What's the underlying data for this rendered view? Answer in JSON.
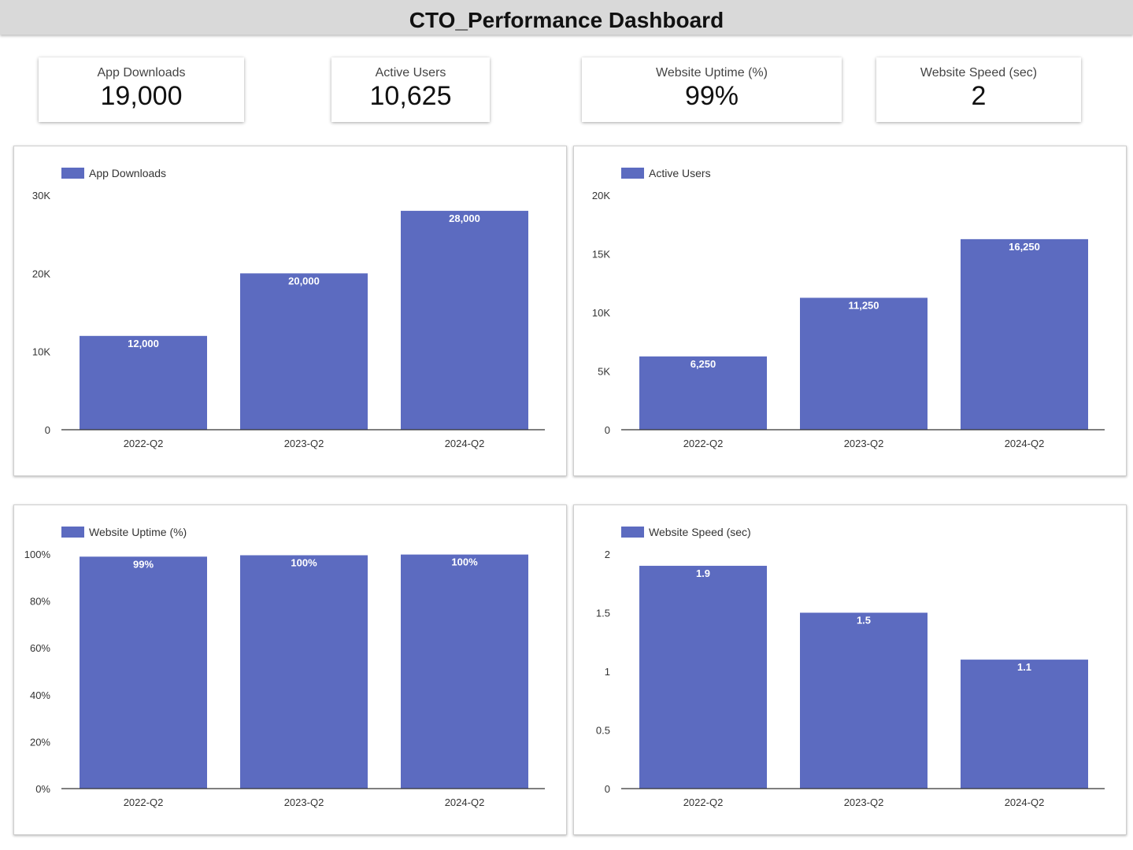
{
  "header": {
    "title": "CTO_Performance Dashboard"
  },
  "kpis": [
    {
      "label": "App Downloads",
      "value": "19,000"
    },
    {
      "label": "Active Users",
      "value": "10,625"
    },
    {
      "label": "Website Uptime (%)",
      "value": "99%"
    },
    {
      "label": "Website Speed (sec)",
      "value": "2"
    }
  ],
  "colors": {
    "bar": "#5c6bc0",
    "header_bg": "#d9d9d9"
  },
  "chart_data": [
    {
      "type": "bar",
      "title": "",
      "categories": [
        "2022-Q2",
        "2023-Q2",
        "2024-Q2"
      ],
      "series": [
        {
          "name": "App Downloads",
          "values": [
            12000,
            20000,
            28000
          ]
        }
      ],
      "data_labels": [
        "12,000",
        "20,000",
        "28,000"
      ],
      "ylim": [
        0,
        30000
      ],
      "yticks": [
        0,
        10000,
        20000,
        30000
      ],
      "ytick_labels": [
        "0",
        "10K",
        "20K",
        "30K"
      ],
      "legend": "top-left",
      "grid": false
    },
    {
      "type": "bar",
      "title": "",
      "categories": [
        "2022-Q2",
        "2023-Q2",
        "2024-Q2"
      ],
      "series": [
        {
          "name": "Active Users",
          "values": [
            6250,
            11250,
            16250
          ]
        }
      ],
      "data_labels": [
        "6,250",
        "11,250",
        "16,250"
      ],
      "ylim": [
        0,
        20000
      ],
      "yticks": [
        0,
        5000,
        10000,
        15000,
        20000
      ],
      "ytick_labels": [
        "0",
        "5K",
        "10K",
        "15K",
        "20K"
      ],
      "legend": "top-left",
      "grid": false
    },
    {
      "type": "bar",
      "title": "",
      "categories": [
        "2022-Q2",
        "2023-Q2",
        "2024-Q2"
      ],
      "series": [
        {
          "name": "Website Uptime (%)",
          "values": [
            98.9,
            99.5,
            99.8
          ]
        }
      ],
      "data_labels": [
        "99%",
        "100%",
        "100%"
      ],
      "ylim": [
        0,
        100
      ],
      "yticks": [
        0,
        20,
        40,
        60,
        80,
        100
      ],
      "ytick_labels": [
        "0%",
        "20%",
        "40%",
        "60%",
        "80%",
        "100%"
      ],
      "legend": "top-left",
      "grid": false
    },
    {
      "type": "bar",
      "title": "",
      "categories": [
        "2022-Q2",
        "2023-Q2",
        "2024-Q2"
      ],
      "series": [
        {
          "name": "Website Speed (sec)",
          "values": [
            1.9,
            1.5,
            1.1
          ]
        }
      ],
      "data_labels": [
        "1.9",
        "1.5",
        "1.1"
      ],
      "ylim": [
        0,
        2
      ],
      "yticks": [
        0,
        0.5,
        1,
        1.5,
        2
      ],
      "ytick_labels": [
        "0",
        "0.5",
        "1",
        "1.5",
        "2"
      ],
      "legend": "top-left",
      "grid": false
    }
  ]
}
